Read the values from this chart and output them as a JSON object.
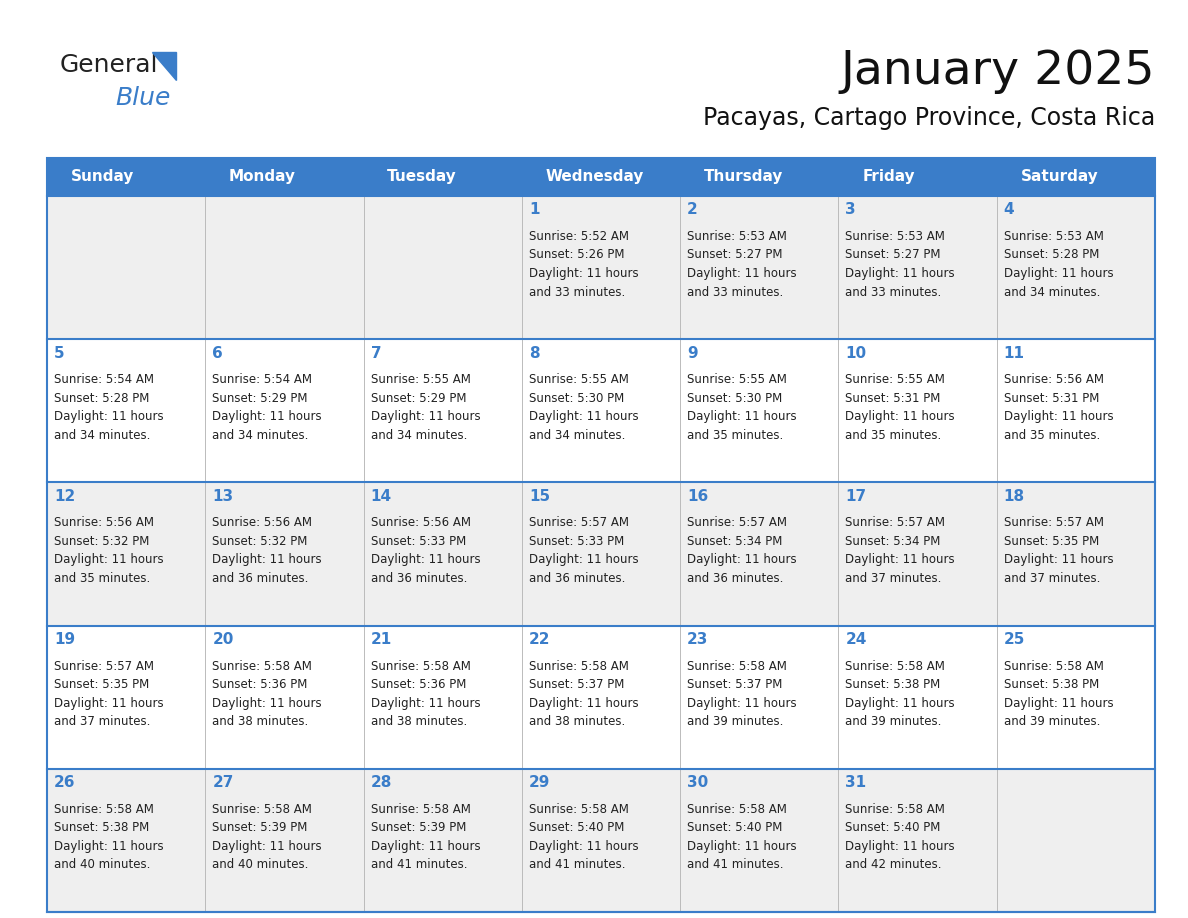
{
  "title": "January 2025",
  "subtitle": "Pacayas, Cartago Province, Costa Rica",
  "days_of_week": [
    "Sunday",
    "Monday",
    "Tuesday",
    "Wednesday",
    "Thursday",
    "Friday",
    "Saturday"
  ],
  "header_bg": "#3A7DC9",
  "header_text_color": "#FFFFFF",
  "row_bg_even": "#EFEFEF",
  "row_bg_odd": "#FFFFFF",
  "grid_line_color": "#3A7DC9",
  "day_num_color": "#3A7DC9",
  "text_color": "#222222",
  "logo_general_color": "#222222",
  "logo_blue_color": "#3A7DC9",
  "logo_triangle_color": "#3A7DC9",
  "calendar": [
    [
      null,
      null,
      null,
      {
        "day": 1,
        "sunrise": "5:52 AM",
        "sunset": "5:26 PM",
        "daylight": "11 hours and 33 minutes."
      },
      {
        "day": 2,
        "sunrise": "5:53 AM",
        "sunset": "5:27 PM",
        "daylight": "11 hours and 33 minutes."
      },
      {
        "day": 3,
        "sunrise": "5:53 AM",
        "sunset": "5:27 PM",
        "daylight": "11 hours and 33 minutes."
      },
      {
        "day": 4,
        "sunrise": "5:53 AM",
        "sunset": "5:28 PM",
        "daylight": "11 hours and 34 minutes."
      }
    ],
    [
      {
        "day": 5,
        "sunrise": "5:54 AM",
        "sunset": "5:28 PM",
        "daylight": "11 hours and 34 minutes."
      },
      {
        "day": 6,
        "sunrise": "5:54 AM",
        "sunset": "5:29 PM",
        "daylight": "11 hours and 34 minutes."
      },
      {
        "day": 7,
        "sunrise": "5:55 AM",
        "sunset": "5:29 PM",
        "daylight": "11 hours and 34 minutes."
      },
      {
        "day": 8,
        "sunrise": "5:55 AM",
        "sunset": "5:30 PM",
        "daylight": "11 hours and 34 minutes."
      },
      {
        "day": 9,
        "sunrise": "5:55 AM",
        "sunset": "5:30 PM",
        "daylight": "11 hours and 35 minutes."
      },
      {
        "day": 10,
        "sunrise": "5:55 AM",
        "sunset": "5:31 PM",
        "daylight": "11 hours and 35 minutes."
      },
      {
        "day": 11,
        "sunrise": "5:56 AM",
        "sunset": "5:31 PM",
        "daylight": "11 hours and 35 minutes."
      }
    ],
    [
      {
        "day": 12,
        "sunrise": "5:56 AM",
        "sunset": "5:32 PM",
        "daylight": "11 hours and 35 minutes."
      },
      {
        "day": 13,
        "sunrise": "5:56 AM",
        "sunset": "5:32 PM",
        "daylight": "11 hours and 36 minutes."
      },
      {
        "day": 14,
        "sunrise": "5:56 AM",
        "sunset": "5:33 PM",
        "daylight": "11 hours and 36 minutes."
      },
      {
        "day": 15,
        "sunrise": "5:57 AM",
        "sunset": "5:33 PM",
        "daylight": "11 hours and 36 minutes."
      },
      {
        "day": 16,
        "sunrise": "5:57 AM",
        "sunset": "5:34 PM",
        "daylight": "11 hours and 36 minutes."
      },
      {
        "day": 17,
        "sunrise": "5:57 AM",
        "sunset": "5:34 PM",
        "daylight": "11 hours and 37 minutes."
      },
      {
        "day": 18,
        "sunrise": "5:57 AM",
        "sunset": "5:35 PM",
        "daylight": "11 hours and 37 minutes."
      }
    ],
    [
      {
        "day": 19,
        "sunrise": "5:57 AM",
        "sunset": "5:35 PM",
        "daylight": "11 hours and 37 minutes."
      },
      {
        "day": 20,
        "sunrise": "5:58 AM",
        "sunset": "5:36 PM",
        "daylight": "11 hours and 38 minutes."
      },
      {
        "day": 21,
        "sunrise": "5:58 AM",
        "sunset": "5:36 PM",
        "daylight": "11 hours and 38 minutes."
      },
      {
        "day": 22,
        "sunrise": "5:58 AM",
        "sunset": "5:37 PM",
        "daylight": "11 hours and 38 minutes."
      },
      {
        "day": 23,
        "sunrise": "5:58 AM",
        "sunset": "5:37 PM",
        "daylight": "11 hours and 39 minutes."
      },
      {
        "day": 24,
        "sunrise": "5:58 AM",
        "sunset": "5:38 PM",
        "daylight": "11 hours and 39 minutes."
      },
      {
        "day": 25,
        "sunrise": "5:58 AM",
        "sunset": "5:38 PM",
        "daylight": "11 hours and 39 minutes."
      }
    ],
    [
      {
        "day": 26,
        "sunrise": "5:58 AM",
        "sunset": "5:38 PM",
        "daylight": "11 hours and 40 minutes."
      },
      {
        "day": 27,
        "sunrise": "5:58 AM",
        "sunset": "5:39 PM",
        "daylight": "11 hours and 40 minutes."
      },
      {
        "day": 28,
        "sunrise": "5:58 AM",
        "sunset": "5:39 PM",
        "daylight": "11 hours and 41 minutes."
      },
      {
        "day": 29,
        "sunrise": "5:58 AM",
        "sunset": "5:40 PM",
        "daylight": "11 hours and 41 minutes."
      },
      {
        "day": 30,
        "sunrise": "5:58 AM",
        "sunset": "5:40 PM",
        "daylight": "11 hours and 41 minutes."
      },
      {
        "day": 31,
        "sunrise": "5:58 AM",
        "sunset": "5:40 PM",
        "daylight": "11 hours and 42 minutes."
      },
      null
    ]
  ]
}
